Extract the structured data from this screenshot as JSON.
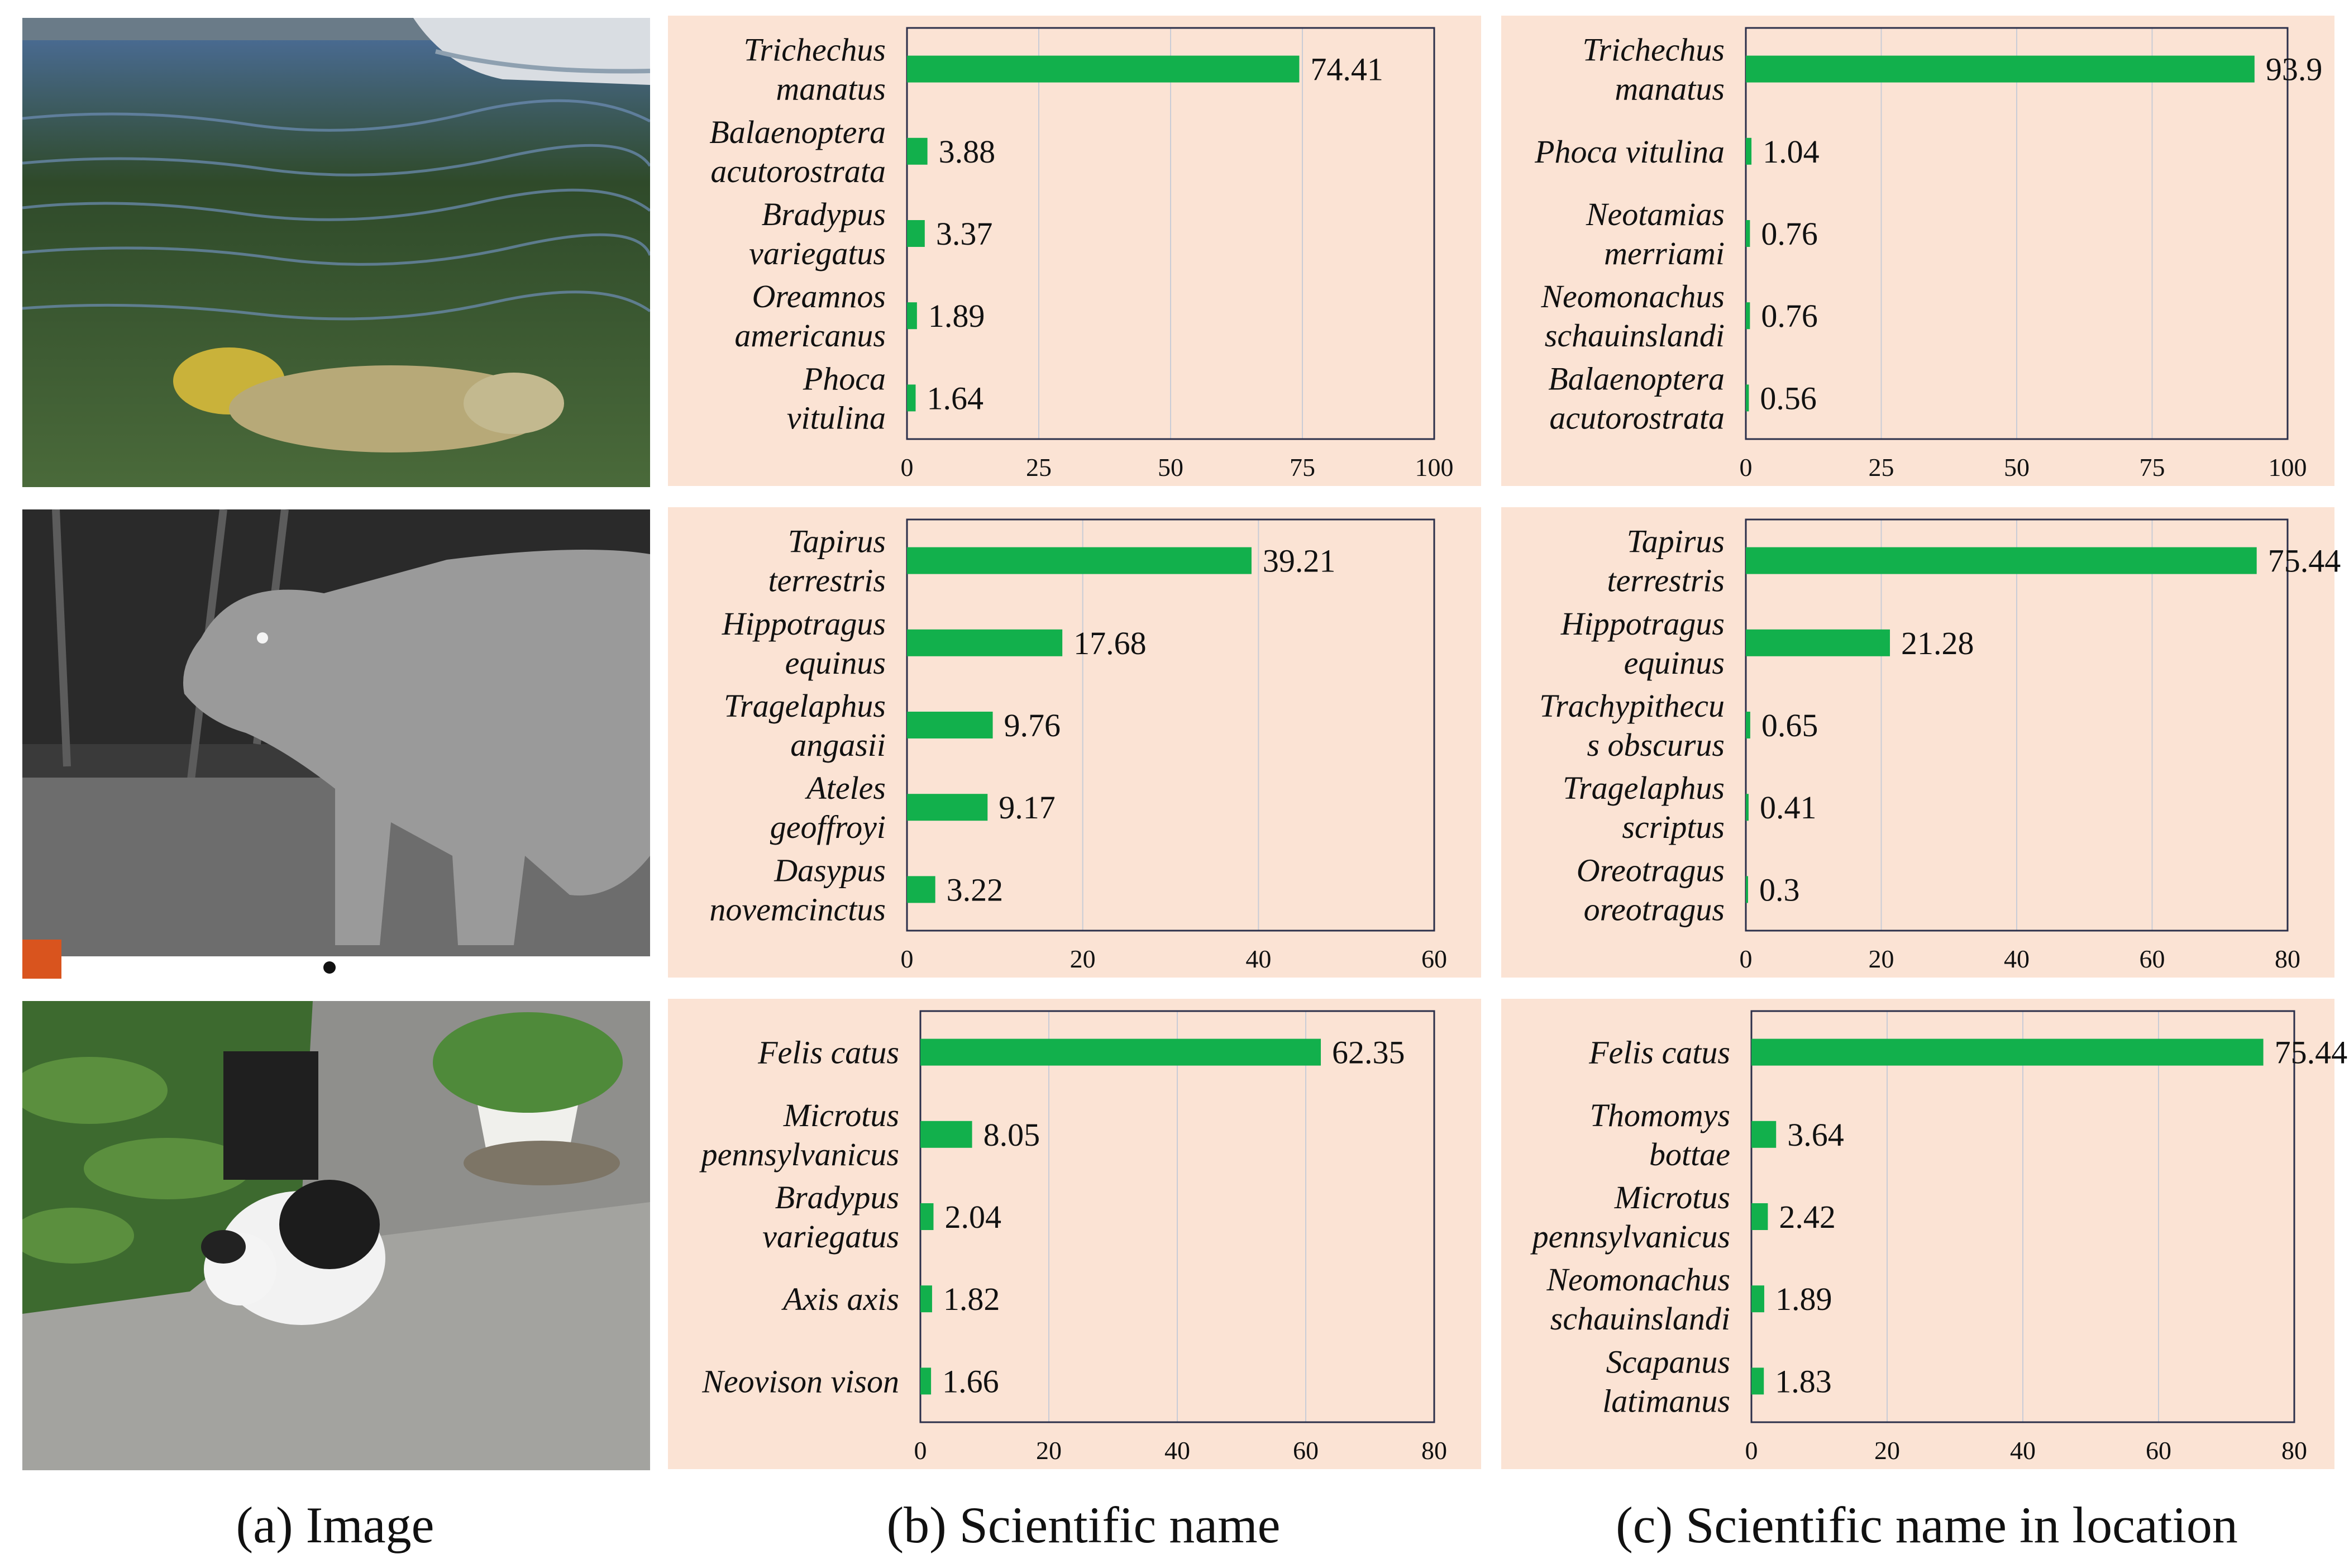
{
  "captions": {
    "a": "(a) Image",
    "b": "(b) Scientific name",
    "c": "(c) Scientific name in location"
  },
  "colors": {
    "bar": "#12b04c",
    "panel": "#fbe3d4",
    "grid": "#c9ccd6",
    "axis": "#2b2f4a"
  },
  "chart_data": [
    {
      "type": "bar",
      "orientation": "horizontal",
      "row": 1,
      "column": "b",
      "categories": [
        [
          "Trichechus",
          "manatus"
        ],
        [
          "Balaenoptera",
          "acutorostrata"
        ],
        [
          "Bradypus",
          "variegatus"
        ],
        [
          "Oreamnos",
          "americanus"
        ],
        [
          "Phoca",
          "vitulina"
        ]
      ],
      "values": [
        74.41,
        3.88,
        3.37,
        1.89,
        1.64
      ],
      "value_labels": [
        "74.41",
        "3.88",
        "3.37",
        "1.89",
        "1.64"
      ],
      "xlim": [
        0,
        100
      ],
      "xticks": [
        "0",
        "25",
        "50",
        "75",
        "100"
      ],
      "grid": true
    },
    {
      "type": "bar",
      "orientation": "horizontal",
      "row": 1,
      "column": "c",
      "categories": [
        [
          "Trichechus",
          "manatus"
        ],
        [
          "Phoca vitulina"
        ],
        [
          "Neotamias",
          "merriami"
        ],
        [
          "Neomonachus",
          "schauinslandi"
        ],
        [
          "Balaenoptera",
          "acutorostrata"
        ]
      ],
      "values": [
        93.9,
        1.04,
        0.76,
        0.76,
        0.56
      ],
      "value_labels": [
        "93.9",
        "1.04",
        "0.76",
        "0.76",
        "0.56"
      ],
      "xlim": [
        0,
        100
      ],
      "xticks": [
        "0",
        "25",
        "50",
        "75",
        "100"
      ],
      "grid": true
    },
    {
      "type": "bar",
      "orientation": "horizontal",
      "row": 2,
      "column": "b",
      "categories": [
        [
          "Tapirus",
          "terrestris"
        ],
        [
          "Hippotragus",
          "equinus"
        ],
        [
          "Tragelaphus",
          "angasii"
        ],
        [
          "Ateles",
          "geoffroyi"
        ],
        [
          "Dasypus",
          "novemcinctus"
        ]
      ],
      "values": [
        39.21,
        17.68,
        9.76,
        9.17,
        3.22
      ],
      "value_labels": [
        "39.21",
        "17.68",
        "9.76",
        "9.17",
        "3.22"
      ],
      "xlim": [
        0,
        60
      ],
      "xticks": [
        "0",
        "20",
        "40",
        "60"
      ],
      "grid": true
    },
    {
      "type": "bar",
      "orientation": "horizontal",
      "row": 2,
      "column": "c",
      "categories": [
        [
          "Tapirus",
          "terrestris"
        ],
        [
          "Hippotragus",
          "equinus"
        ],
        [
          "Trachypithecu",
          "s obscurus"
        ],
        [
          "Tragelaphus",
          "scriptus"
        ],
        [
          "Oreotragus",
          "oreotragus"
        ]
      ],
      "values": [
        75.44,
        21.28,
        0.65,
        0.41,
        0.3
      ],
      "value_labels": [
        "75.44",
        "21.28",
        "0.65",
        "0.41",
        "0.3"
      ],
      "xlim": [
        0,
        80
      ],
      "xticks": [
        "0",
        "20",
        "40",
        "60",
        "80"
      ],
      "grid": true
    },
    {
      "type": "bar",
      "orientation": "horizontal",
      "row": 3,
      "column": "b",
      "categories": [
        [
          "Felis catus"
        ],
        [
          "Microtus",
          "pennsylvanicus"
        ],
        [
          "Bradypus",
          "variegatus"
        ],
        [
          "Axis axis"
        ],
        [
          "Neovison vison"
        ]
      ],
      "values": [
        62.35,
        8.05,
        2.04,
        1.82,
        1.66
      ],
      "value_labels": [
        "62.35",
        "8.05",
        "2.04",
        "1.82",
        "1.66"
      ],
      "xlim": [
        0,
        80
      ],
      "xticks": [
        "0",
        "20",
        "40",
        "60",
        "80"
      ],
      "grid": true
    },
    {
      "type": "bar",
      "orientation": "horizontal",
      "row": 3,
      "column": "c",
      "categories": [
        [
          "Felis catus"
        ],
        [
          "Thomomys",
          "bottae"
        ],
        [
          "Microtus",
          "pennsylvanicus"
        ],
        [
          "Neomonachus",
          "schauinslandi"
        ],
        [
          "Scapanus",
          "latimanus"
        ]
      ],
      "values": [
        75.44,
        3.64,
        2.42,
        1.89,
        1.83
      ],
      "value_labels": [
        "75.44",
        "3.64",
        "2.42",
        "1.89",
        "1.83"
      ],
      "xlim": [
        0,
        80
      ],
      "xticks": [
        "0",
        "20",
        "40",
        "60",
        "80"
      ],
      "grid": true
    }
  ]
}
